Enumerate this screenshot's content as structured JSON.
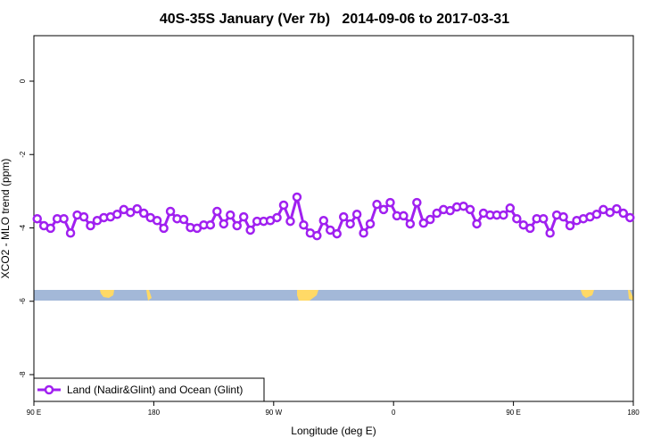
{
  "chart_data": {
    "type": "line",
    "title": "40S-35S January (Ver 7b)   2014-09-06 to 2017-03-31",
    "x_label": "Longitude (deg E)",
    "y_label": "XCO2 - MLO trend (ppm)",
    "xlim": [
      90,
      540
    ],
    "xticks": [
      {
        "value": 90,
        "label": "90 E"
      },
      {
        "value": 180,
        "label": "180"
      },
      {
        "value": 270,
        "label": "90 W"
      },
      {
        "value": 360,
        "label": "0"
      },
      {
        "value": 450,
        "label": "90 E"
      },
      {
        "value": 540,
        "label": "180"
      }
    ],
    "ylim": [
      -8.73,
      1.24
    ],
    "yticks": [
      0,
      -2,
      -4,
      -6,
      -8
    ],
    "legend": "bottom-left",
    "x": [
      92.5,
      97.5,
      102.5,
      107.5,
      112.5,
      117.5,
      122.5,
      127.5,
      132.5,
      137.5,
      142.5,
      147.5,
      152.5,
      157.5,
      162.5,
      167.5,
      172.5,
      177.5,
      182.5,
      187.5,
      192.5,
      197.5,
      202.5,
      207.5,
      212.5,
      217.5,
      222.5,
      227.5,
      232.5,
      237.5,
      242.5,
      247.5,
      252.5,
      257.5,
      262.5,
      267.5,
      272.5,
      277.5,
      282.5,
      287.5,
      292.5,
      297.5,
      302.5,
      307.5,
      312.5,
      317.5,
      322.5,
      327.5,
      332.5,
      337.5,
      342.5,
      347.5,
      352.5,
      357.5,
      362.5,
      367.5,
      372.5,
      377.5,
      382.5,
      387.5,
      392.5,
      397.5,
      402.5,
      407.5,
      412.5,
      417.5,
      422.5,
      427.5,
      432.5,
      437.5,
      442.5,
      447.5,
      452.5,
      457.5,
      462.5,
      467.5,
      472.5,
      477.5,
      482.5,
      487.5,
      492.5,
      497.5,
      502.5,
      507.5,
      512.5,
      517.5,
      522.5,
      527.5,
      532.5,
      537.5
    ],
    "series": [
      {
        "name": "Land (Nadir&Glint) and Ocean (Glint)",
        "color": "#a020f0",
        "values": [
          -3.75,
          -3.94,
          -4.01,
          -3.75,
          -3.75,
          -4.14,
          -3.65,
          -3.7,
          -3.94,
          -3.8,
          -3.72,
          -3.7,
          -3.63,
          -3.5,
          -3.58,
          -3.48,
          -3.6,
          -3.72,
          -3.8,
          -4.01,
          -3.55,
          -3.75,
          -3.77,
          -3.99,
          -4.01,
          -3.92,
          -3.92,
          -3.55,
          -3.89,
          -3.65,
          -3.94,
          -3.7,
          -4.06,
          -3.82,
          -3.82,
          -3.8,
          -3.72,
          -3.38,
          -3.82,
          -3.16,
          -3.92,
          -4.14,
          -4.21,
          -3.8,
          -4.06,
          -4.16,
          -3.7,
          -3.89,
          -3.63,
          -4.14,
          -3.89,
          -3.36,
          -3.5,
          -3.31,
          -3.67,
          -3.67,
          -3.89,
          -3.31,
          -3.87,
          -3.77,
          -3.6,
          -3.5,
          -3.53,
          -3.43,
          -3.41,
          -3.5,
          -3.89,
          -3.6,
          -3.65,
          -3.65,
          -3.65,
          -3.46,
          -3.75,
          -3.92,
          -4.01,
          -3.75,
          -3.75,
          -4.14,
          -3.65,
          -3.7,
          -3.94,
          -3.8,
          -3.75,
          -3.7,
          -3.63,
          -3.5,
          -3.58,
          -3.48,
          -3.6,
          -3.72
        ]
      }
    ]
  }
}
